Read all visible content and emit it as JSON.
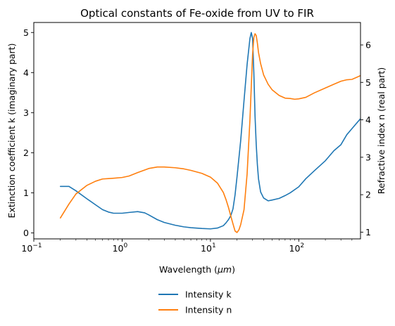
{
  "chart_data": {
    "type": "line",
    "title": "Optical constants of Fe-oxide from UV to FIR",
    "xlabel": "Wavelength (μm)",
    "xlabel_parts": {
      "prefix": "Wavelength (",
      "unit": "μm",
      "suffix": ")"
    },
    "ylabel_left": "Extinction coefficient k (imaginary part)",
    "ylabel_right": "Refractive index n (real part)",
    "x_scale": "log",
    "xlim": [
      0.1,
      500
    ],
    "ylim_left": [
      -0.15,
      5.25
    ],
    "ylim_right": [
      0.82,
      6.6
    ],
    "x_ticks": [
      {
        "value": 0.1,
        "base": "10",
        "exp": "−1"
      },
      {
        "value": 1,
        "base": "10",
        "exp": "0"
      },
      {
        "value": 10,
        "base": "10",
        "exp": "1"
      },
      {
        "value": 100,
        "base": "10",
        "exp": "2"
      }
    ],
    "y_ticks_left": [
      "0",
      "1",
      "2",
      "3",
      "4",
      "5"
    ],
    "y_ticks_right": [
      "1",
      "2",
      "3",
      "4",
      "5",
      "6"
    ],
    "legend_position": "below plot, centered",
    "series": [
      {
        "name": "Intensity k",
        "axis": "left",
        "color": "#1f77b4",
        "x": [
          0.2,
          0.25,
          0.3,
          0.4,
          0.5,
          0.6,
          0.7,
          0.8,
          1.0,
          1.2,
          1.5,
          1.8,
          2.0,
          2.5,
          3,
          4,
          5,
          6,
          8,
          10,
          12,
          14,
          15,
          16,
          17,
          18,
          19,
          20,
          22,
          24,
          26,
          28,
          29,
          30,
          31,
          32,
          33,
          34,
          35,
          37,
          40,
          45,
          50,
          60,
          70,
          80,
          100,
          120,
          150,
          200,
          250,
          300,
          350,
          400,
          500
        ],
        "y": [
          1.16,
          1.16,
          1.05,
          0.85,
          0.7,
          0.58,
          0.52,
          0.49,
          0.49,
          0.51,
          0.53,
          0.5,
          0.45,
          0.33,
          0.26,
          0.19,
          0.15,
          0.13,
          0.11,
          0.1,
          0.12,
          0.18,
          0.25,
          0.33,
          0.43,
          0.6,
          0.95,
          1.4,
          2.3,
          3.3,
          4.2,
          4.85,
          5.0,
          4.85,
          4.0,
          2.9,
          2.2,
          1.7,
          1.35,
          1.02,
          0.87,
          0.8,
          0.82,
          0.86,
          0.93,
          1.0,
          1.15,
          1.35,
          1.55,
          1.8,
          2.05,
          2.2,
          2.45,
          2.6,
          2.85
        ]
      },
      {
        "name": "Intensity n",
        "axis": "right",
        "color": "#ff7f0e",
        "x": [
          0.2,
          0.25,
          0.3,
          0.4,
          0.5,
          0.6,
          0.7,
          0.8,
          1.0,
          1.2,
          1.5,
          1.8,
          2.0,
          2.5,
          3,
          4,
          5,
          6,
          8,
          10,
          12,
          14,
          15,
          16,
          17,
          18,
          19,
          20,
          21,
          22,
          24,
          26,
          28,
          30,
          31,
          32,
          33,
          34,
          35,
          37,
          40,
          45,
          50,
          60,
          70,
          80,
          90,
          100,
          120,
          150,
          200,
          250,
          300,
          350,
          400,
          500
        ],
        "y": [
          1.38,
          1.75,
          2.02,
          2.25,
          2.36,
          2.42,
          2.43,
          2.44,
          2.46,
          2.5,
          2.59,
          2.66,
          2.7,
          2.74,
          2.74,
          2.72,
          2.69,
          2.65,
          2.57,
          2.47,
          2.31,
          2.06,
          1.87,
          1.66,
          1.43,
          1.22,
          1.03,
          0.99,
          1.06,
          1.2,
          1.6,
          2.55,
          4.0,
          5.75,
          6.2,
          6.3,
          6.25,
          6.05,
          5.8,
          5.5,
          5.2,
          4.95,
          4.8,
          4.65,
          4.58,
          4.57,
          4.55,
          4.56,
          4.6,
          4.72,
          4.85,
          4.95,
          5.03,
          5.07,
          5.08,
          5.18
        ]
      }
    ]
  }
}
